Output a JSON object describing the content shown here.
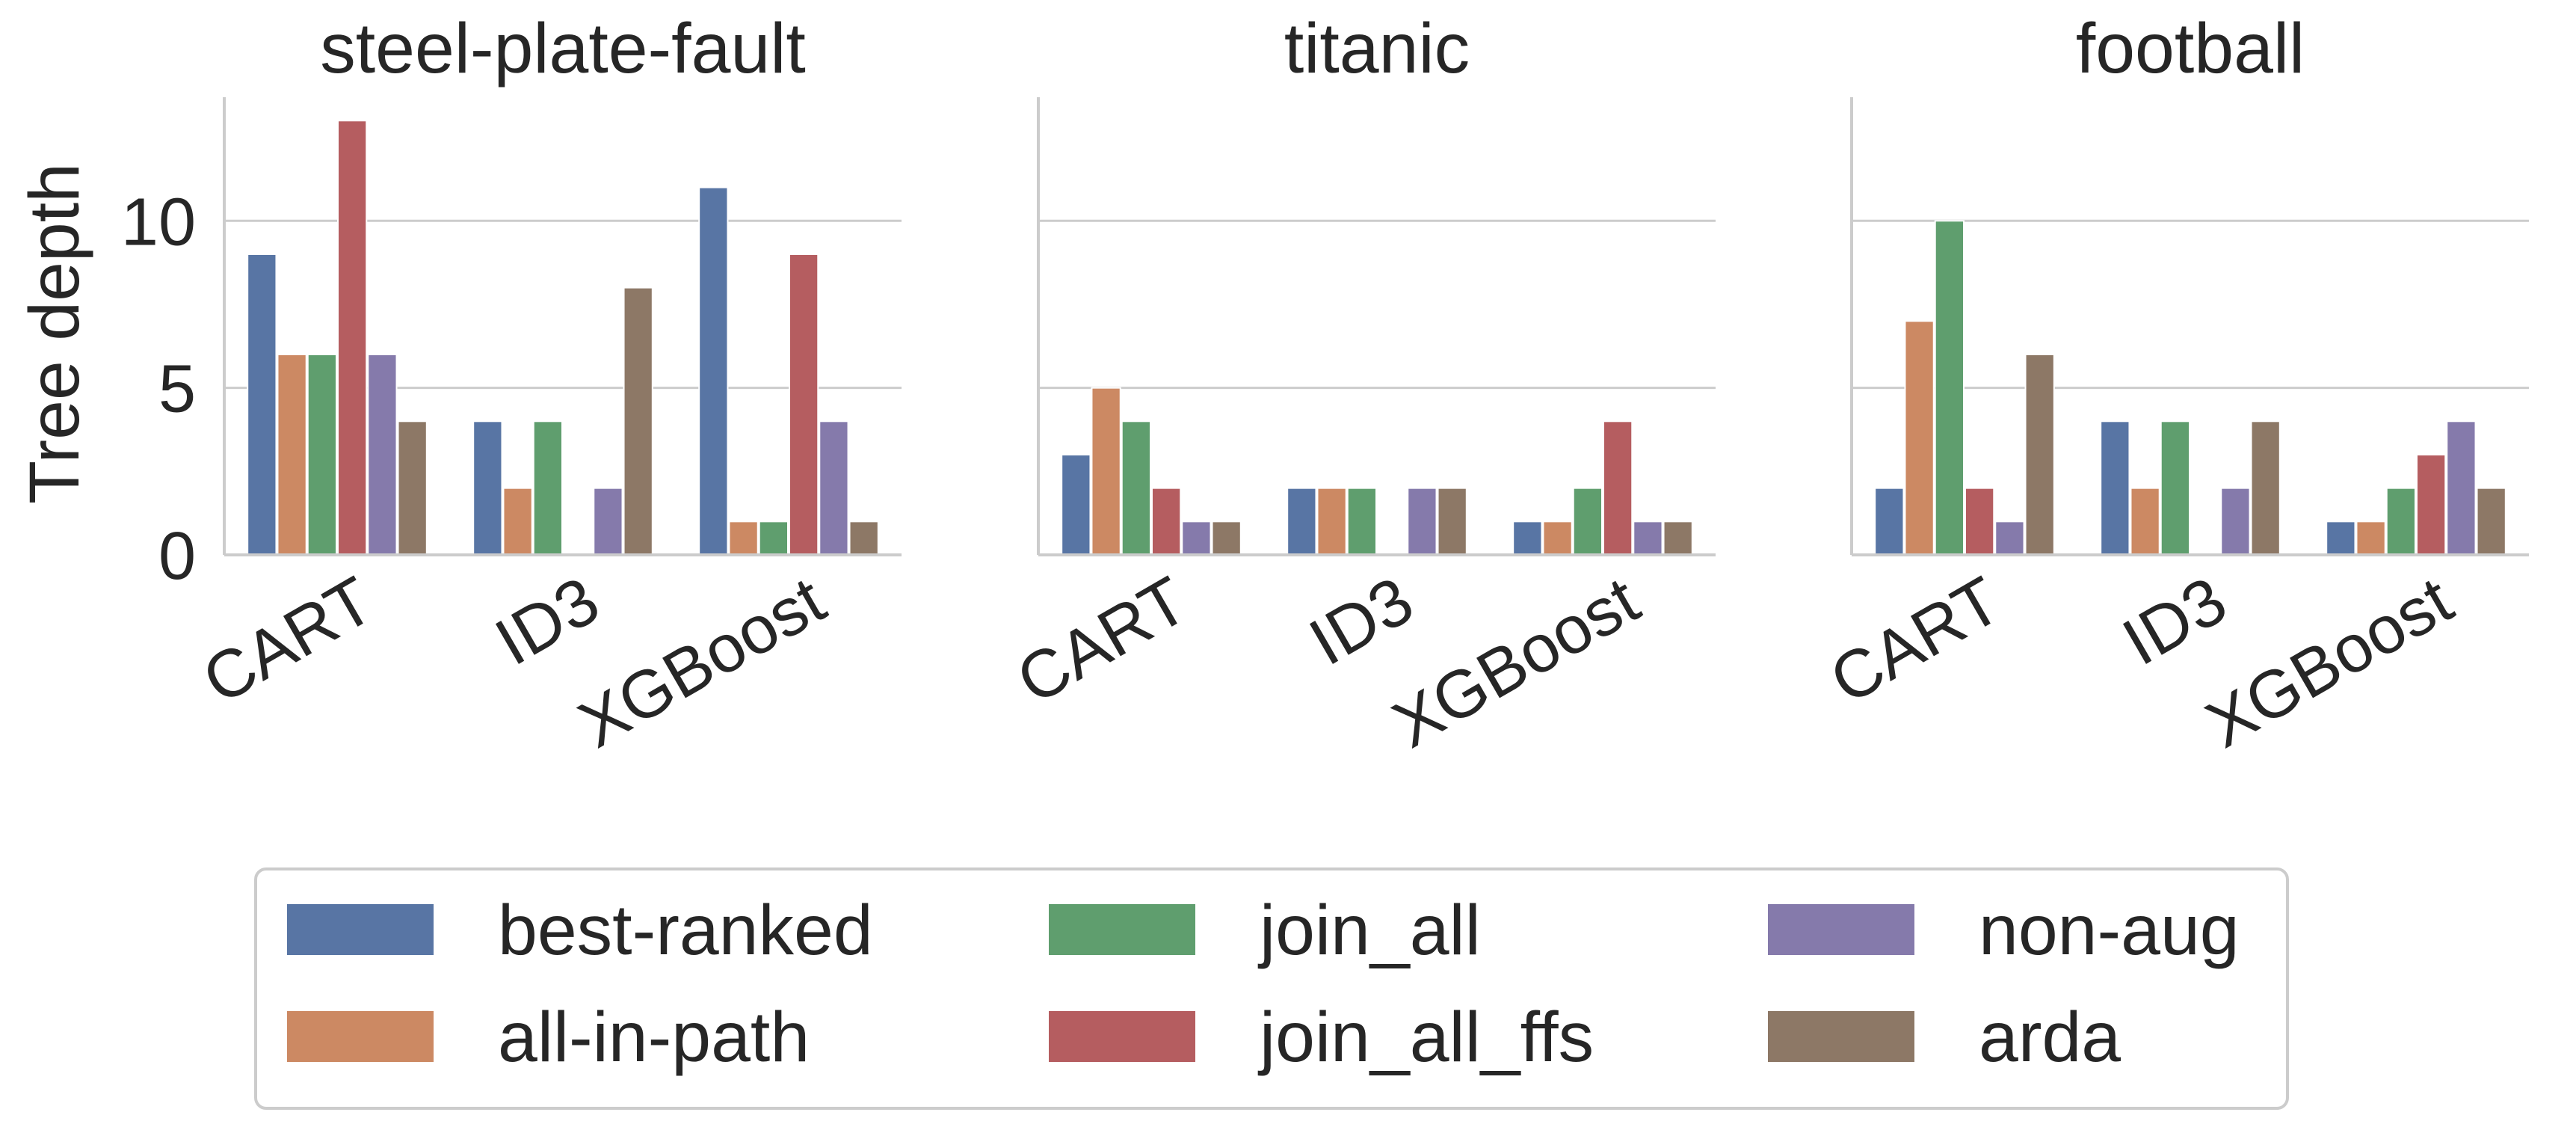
{
  "chart_data": {
    "type": "bar",
    "ylabel": "Tree depth",
    "ylim": [
      0,
      13.7
    ],
    "yticks": [
      0,
      5,
      10
    ],
    "grid": true,
    "legend_position": "bottom",
    "categories": [
      "CART",
      "ID3",
      "XGBoost"
    ],
    "series_names": [
      "best-ranked",
      "all-in-path",
      "join_all",
      "join_all_ffs",
      "non-aug",
      "arda"
    ],
    "colors": {
      "best-ranked": "#5875a4",
      "all-in-path": "#cc8963",
      "join_all": "#5f9e6e",
      "join_all_ffs": "#b55d60",
      "non-aug": "#857aab",
      "arda": "#8d7866"
    },
    "panels": [
      {
        "title": "steel-plate-fault",
        "series": [
          {
            "name": "best-ranked",
            "values": [
              9,
              4,
              11
            ]
          },
          {
            "name": "all-in-path",
            "values": [
              6,
              2,
              1
            ]
          },
          {
            "name": "join_all",
            "values": [
              6,
              4,
              1
            ]
          },
          {
            "name": "join_all_ffs",
            "values": [
              13,
              0,
              9
            ]
          },
          {
            "name": "non-aug",
            "values": [
              6,
              2,
              4
            ]
          },
          {
            "name": "arda",
            "values": [
              4,
              8,
              1
            ]
          }
        ]
      },
      {
        "title": "titanic",
        "series": [
          {
            "name": "best-ranked",
            "values": [
              3,
              2,
              1
            ]
          },
          {
            "name": "all-in-path",
            "values": [
              5,
              2,
              1
            ]
          },
          {
            "name": "join_all",
            "values": [
              4,
              2,
              2
            ]
          },
          {
            "name": "join_all_ffs",
            "values": [
              2,
              0,
              4
            ]
          },
          {
            "name": "non-aug",
            "values": [
              1,
              2,
              1
            ]
          },
          {
            "name": "arda",
            "values": [
              1,
              2,
              1
            ]
          }
        ]
      },
      {
        "title": "football",
        "series": [
          {
            "name": "best-ranked",
            "values": [
              2,
              4,
              1
            ]
          },
          {
            "name": "all-in-path",
            "values": [
              7,
              2,
              1
            ]
          },
          {
            "name": "join_all",
            "values": [
              10,
              4,
              2
            ]
          },
          {
            "name": "join_all_ffs",
            "values": [
              2,
              0,
              3
            ]
          },
          {
            "name": "non-aug",
            "values": [
              1,
              2,
              4
            ]
          },
          {
            "name": "arda",
            "values": [
              6,
              4,
              2
            ]
          }
        ]
      }
    ]
  }
}
